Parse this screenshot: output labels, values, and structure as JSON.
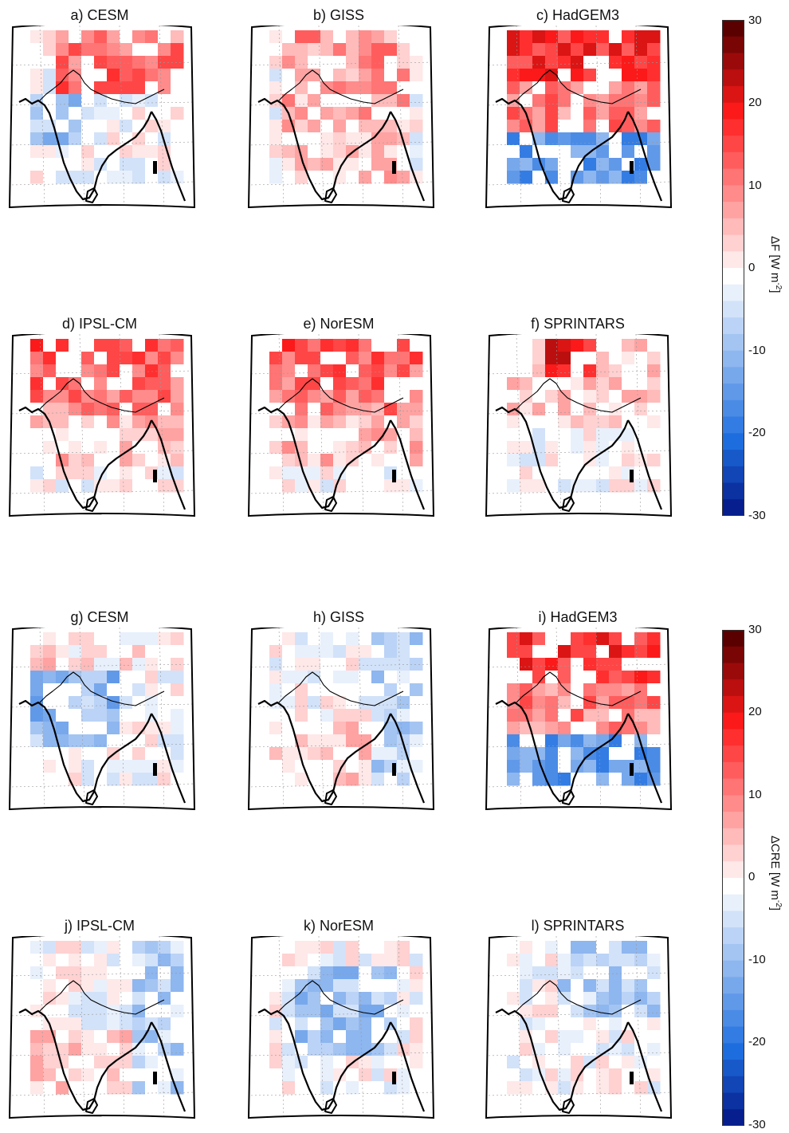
{
  "figure": {
    "top_block_label": "ΔF [W m-2]",
    "top_block_label_base": "ΔF [W m",
    "top_block_label_exp": "-2",
    "top_block_label_end": "]",
    "bottom_block_label_base": "ΔCRE [W m",
    "bottom_block_label_exp": "-2",
    "bottom_block_label_end": "]",
    "colorbar_ticks": [
      "30",
      "20",
      "10",
      "0",
      "-10",
      "-20",
      "-30"
    ],
    "colorbar_range": [
      -30,
      30
    ],
    "colors": {
      "max": "#5a0000",
      "positive": "#ff1a1a",
      "zero": "#ffffff",
      "negative": "#1f6fe0",
      "min": "#000a7a"
    }
  },
  "chart_data": [
    {
      "type": "heatmap",
      "title": "a) CESM",
      "block": "ΔF",
      "pattern": "warm north, cool west coast",
      "range": [
        -30,
        30
      ]
    },
    {
      "type": "heatmap",
      "title": "b) GISS",
      "block": "ΔF",
      "pattern": "widespread warm",
      "range": [
        -30,
        30
      ]
    },
    {
      "type": "heatmap",
      "title": "c) HadGEM3",
      "block": "ΔF",
      "pattern": "strong dipole",
      "range": [
        -30,
        30
      ]
    },
    {
      "type": "heatmap",
      "title": "d) IPSL-CM",
      "block": "ΔF",
      "pattern": "warm north",
      "range": [
        -30,
        30
      ]
    },
    {
      "type": "heatmap",
      "title": "e) NorESM",
      "block": "ΔF",
      "pattern": "warm north",
      "range": [
        -30,
        30
      ]
    },
    {
      "type": "heatmap",
      "title": "f) SPRINTARS",
      "block": "ΔF",
      "pattern": "localized warm",
      "range": [
        -30,
        30
      ]
    },
    {
      "type": "heatmap",
      "title": "g) CESM",
      "block": "ΔCRE",
      "pattern": "cool west",
      "range": [
        -30,
        30
      ]
    },
    {
      "type": "heatmap",
      "title": "h) GISS",
      "block": "ΔCRE",
      "pattern": "weak mixed",
      "range": [
        -30,
        30
      ]
    },
    {
      "type": "heatmap",
      "title": "i) HadGEM3",
      "block": "ΔCRE",
      "pattern": "strong dipole",
      "range": [
        -30,
        30
      ]
    },
    {
      "type": "heatmap",
      "title": "j) IPSL-CM",
      "block": "ΔCRE",
      "pattern": "weak mixed",
      "range": [
        -30,
        30
      ]
    },
    {
      "type": "heatmap",
      "title": "k) NorESM",
      "block": "ΔCRE",
      "pattern": "cool widespread",
      "range": [
        -30,
        30
      ]
    },
    {
      "type": "heatmap",
      "title": "l) SPRINTARS",
      "block": "ΔCRE",
      "pattern": "weak cool",
      "range": [
        -30,
        30
      ]
    }
  ]
}
